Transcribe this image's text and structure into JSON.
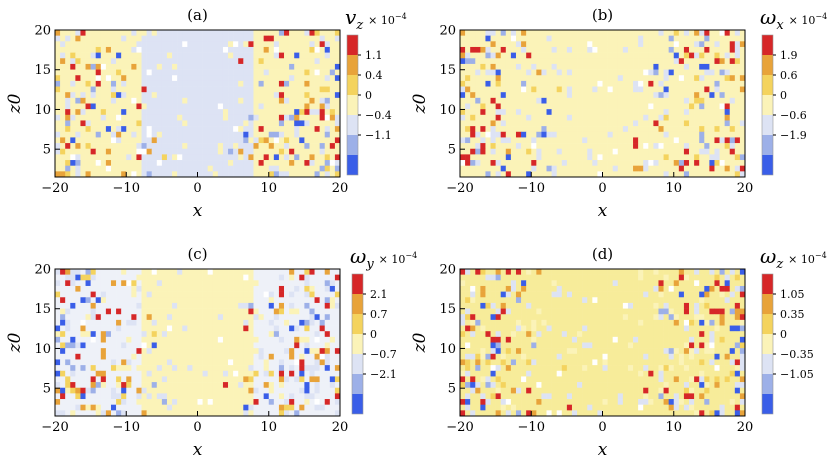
{
  "chart_data": [
    {
      "type": "heatmap",
      "panel": "(a)",
      "xlabel": "x",
      "ylabel": "z0",
      "xlim": [
        -20,
        20
      ],
      "ylim": [
        1.5,
        20
      ],
      "xticks": [
        "−20",
        "−10",
        "0",
        "10",
        "20"
      ],
      "yticks": [
        "5",
        "10",
        "15",
        "20"
      ],
      "colorbar": {
        "symbol": "v",
        "subscript": "z",
        "scale": "× 10",
        "exponent": "−4",
        "ticks": [
          "1.1",
          "0.4",
          "0",
          "−0.4",
          "−1.1"
        ],
        "colors": [
          "#d62728",
          "#e8a33a",
          "#f4d35e",
          "#fbf3b8",
          "#dde3f4",
          "#9db0e8",
          "#3a5ee8"
        ]
      },
      "pattern": {
        "background": "#fbf3b8",
        "center_color": "#dde3f4",
        "seed": 11
      }
    },
    {
      "type": "heatmap",
      "panel": "(b)",
      "xlabel": "x",
      "ylabel": "z0",
      "xlim": [
        -20,
        20
      ],
      "ylim": [
        1.5,
        20
      ],
      "xticks": [
        "−20",
        "−10",
        "0",
        "10",
        "20"
      ],
      "yticks": [
        "5",
        "10",
        "15",
        "20"
      ],
      "colorbar": {
        "symbol": "ω",
        "subscript": "x",
        "scale": "× 10",
        "exponent": "−4",
        "ticks": [
          "1.9",
          "0.6",
          "0",
          "−0.6",
          "−1.9"
        ],
        "colors": [
          "#d62728",
          "#e8a33a",
          "#f4d35e",
          "#fbf3b8",
          "#dde3f4",
          "#9db0e8",
          "#3a5ee8"
        ]
      },
      "pattern": {
        "background": "#fbf3b8",
        "center_color": "#fbf3b8",
        "seed": 23
      }
    },
    {
      "type": "heatmap",
      "panel": "(c)",
      "xlabel": "x",
      "ylabel": "z0",
      "xlim": [
        -20,
        20
      ],
      "ylim": [
        1.5,
        20
      ],
      "xticks": [
        "−20",
        "−10",
        "0",
        "10",
        "20"
      ],
      "yticks": [
        "5",
        "10",
        "15",
        "20"
      ],
      "colorbar": {
        "symbol": "ω",
        "subscript": "y",
        "scale": "× 10",
        "exponent": "−4",
        "ticks": [
          "2.1",
          "0.7",
          "0",
          "−0.7",
          "−2.1"
        ],
        "colors": [
          "#d62728",
          "#e8a33a",
          "#f4d35e",
          "#fbf3b8",
          "#dde3f4",
          "#9db0e8",
          "#3a5ee8"
        ]
      },
      "pattern": {
        "background": "#eef1f8",
        "center_color": "#fbf3b8",
        "seed": 37
      }
    },
    {
      "type": "heatmap",
      "panel": "(d)",
      "xlabel": "x",
      "ylabel": "z0",
      "xlim": [
        -20,
        20
      ],
      "ylim": [
        1.5,
        20
      ],
      "xticks": [
        "−20",
        "−10",
        "0",
        "10",
        "20"
      ],
      "yticks": [
        "5",
        "10",
        "15",
        "20"
      ],
      "colorbar": {
        "symbol": "ω",
        "subscript": "z",
        "scale": "× 10",
        "exponent": "−4",
        "ticks": [
          "1.05",
          "0.35",
          "0",
          "−0.35",
          "−1.05"
        ],
        "colors": [
          "#d62728",
          "#e8a33a",
          "#f4d35e",
          "#fbf3b8",
          "#dde3f4",
          "#9db0e8",
          "#3a5ee8"
        ]
      },
      "pattern": {
        "background": "#f7ec9a",
        "center_color": "#f7ec9a",
        "seed": 53
      }
    }
  ]
}
